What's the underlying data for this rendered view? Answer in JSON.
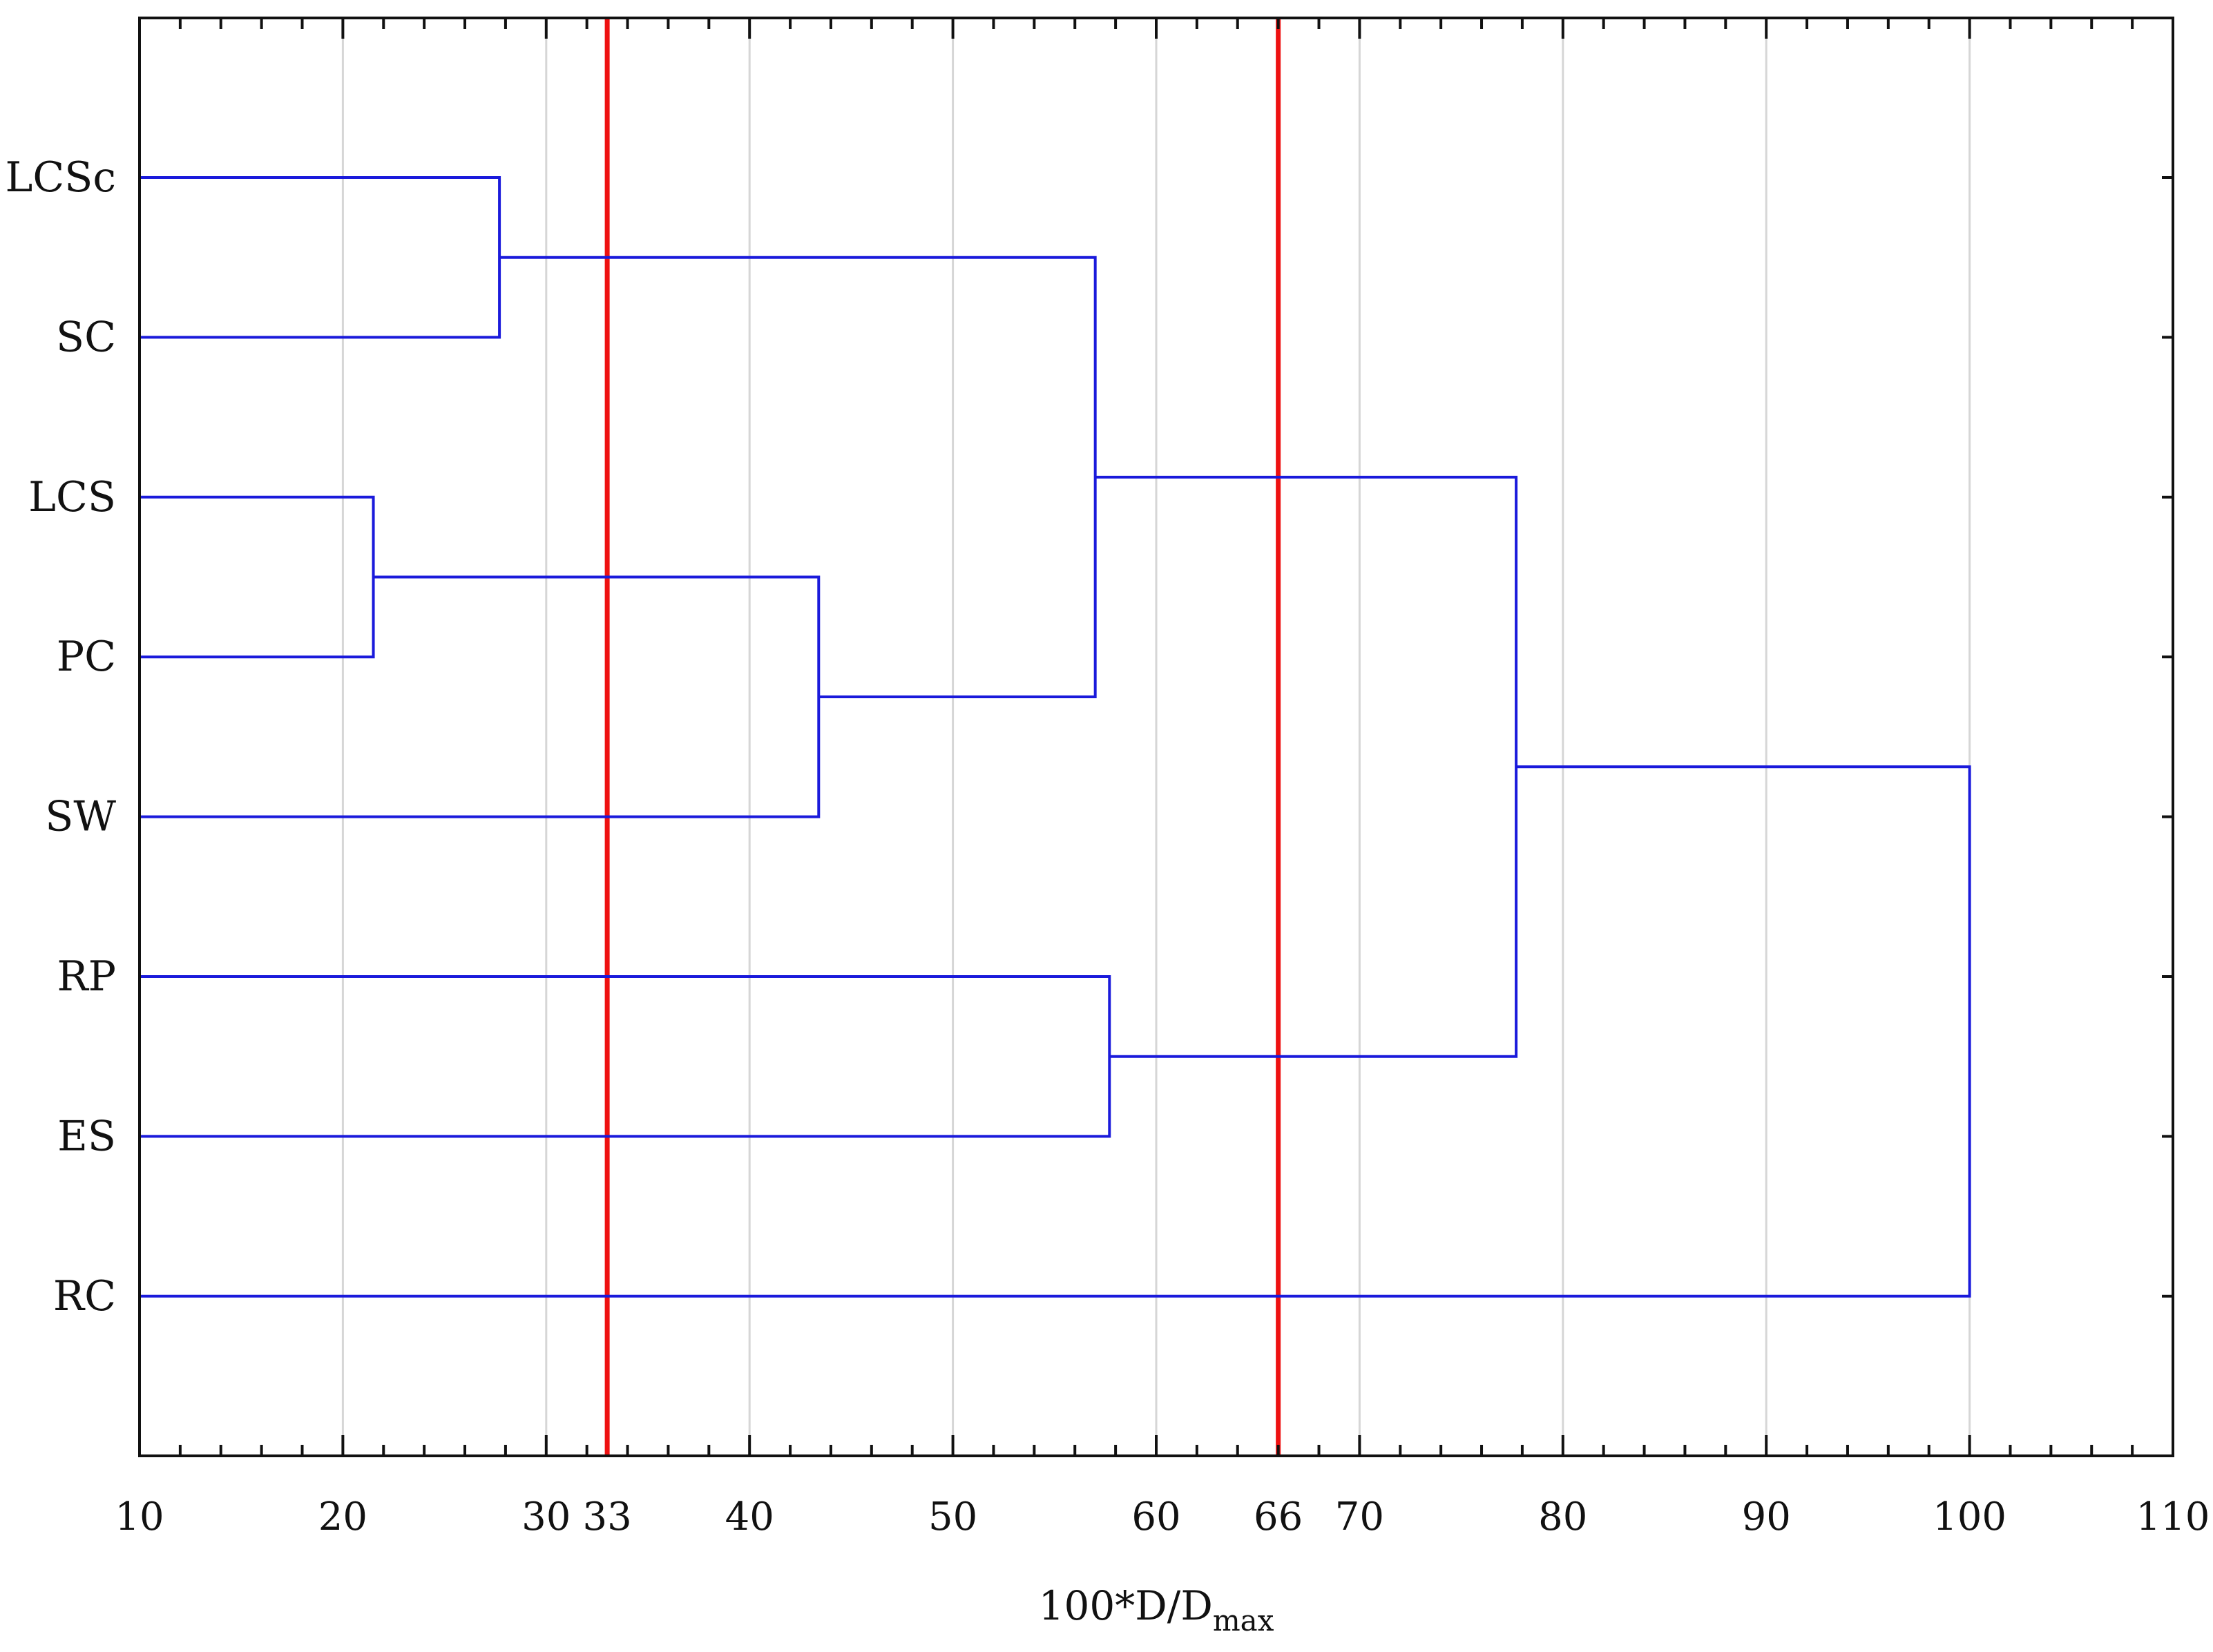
{
  "chart_data": {
    "type": "dendrogram",
    "orientation": "horizontal",
    "xlabel": {
      "main": "100*D/D",
      "subscript": "max"
    },
    "xlim": [
      10,
      110
    ],
    "xticks": [
      10,
      20,
      30,
      40,
      50,
      60,
      70,
      80,
      90,
      100,
      110
    ],
    "extra_ticks": [
      33,
      66
    ],
    "grid": "vertical",
    "leaves": [
      "LCSc",
      "SC",
      "LCS",
      "PC",
      "SW",
      "RP",
      "ES",
      "RC"
    ],
    "merges": [
      {
        "id": "m1",
        "children": [
          "LCS",
          "PC"
        ],
        "height": 21.5
      },
      {
        "id": "m2",
        "children": [
          "LCSc",
          "SC"
        ],
        "height": 27.7
      },
      {
        "id": "m3",
        "children": [
          "m1",
          "SW"
        ],
        "height": 43.4
      },
      {
        "id": "m4",
        "children": [
          "m2",
          "m3"
        ],
        "height": 57.0
      },
      {
        "id": "m5",
        "children": [
          "RP",
          "ES"
        ],
        "height": 57.7
      },
      {
        "id": "m6",
        "children": [
          "m4",
          "m5"
        ],
        "height": 77.7
      },
      {
        "id": "m7",
        "children": [
          "m6",
          "RC"
        ],
        "height": 100.0
      }
    ],
    "cut_lines": [
      33,
      66
    ],
    "colors": {
      "branches": "#1a1adb",
      "cut_lines": "#ee1111",
      "grid": "#d6d6d6",
      "axis": "#111111"
    }
  }
}
